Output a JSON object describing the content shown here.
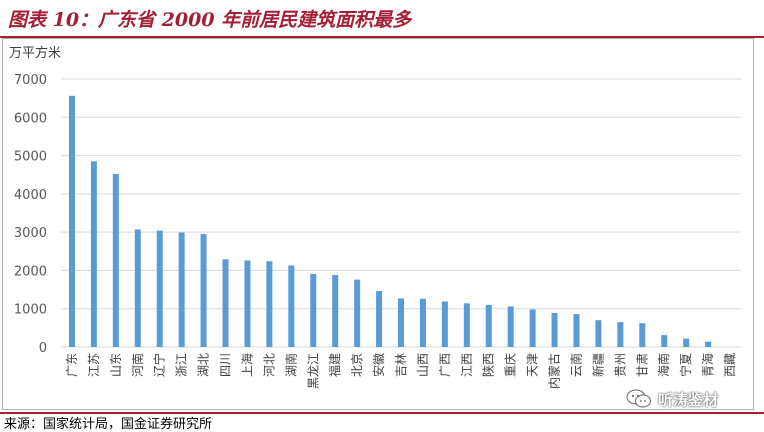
{
  "title": "图表 10：广东省 2000 年前居民建筑面积最多",
  "source": "来源：国家统计局，国金证券研究所",
  "watermark": "听涛鉴材",
  "colors": {
    "accent": "#a31f34",
    "bar": "#5b9bd5",
    "grid": "#d9d9d9"
  },
  "chart_data": {
    "type": "bar",
    "title": "",
    "unit_label": "万平方米",
    "xlabel": "",
    "ylabel": "",
    "ylim": [
      0,
      7000
    ],
    "yticks": [
      0,
      1000,
      2000,
      3000,
      4000,
      5000,
      6000,
      7000
    ],
    "grid": true,
    "categories": [
      "广东",
      "江苏",
      "山东",
      "河南",
      "辽宁",
      "浙江",
      "湖北",
      "四川",
      "上海",
      "河北",
      "湖南",
      "黑龙江",
      "福建",
      "北京",
      "安徽",
      "吉林",
      "山西",
      "广西",
      "江西",
      "陕西",
      "重庆",
      "天津",
      "内蒙古",
      "云南",
      "新疆",
      "贵州",
      "甘肃",
      "海南",
      "宁夏",
      "青海",
      "西藏"
    ],
    "values": [
      6560,
      4850,
      4520,
      3070,
      3040,
      2990,
      2950,
      2290,
      2260,
      2240,
      2130,
      1910,
      1880,
      1760,
      1460,
      1270,
      1260,
      1190,
      1140,
      1100,
      1060,
      980,
      890,
      860,
      700,
      650,
      620,
      310,
      220,
      140,
      0
    ]
  }
}
